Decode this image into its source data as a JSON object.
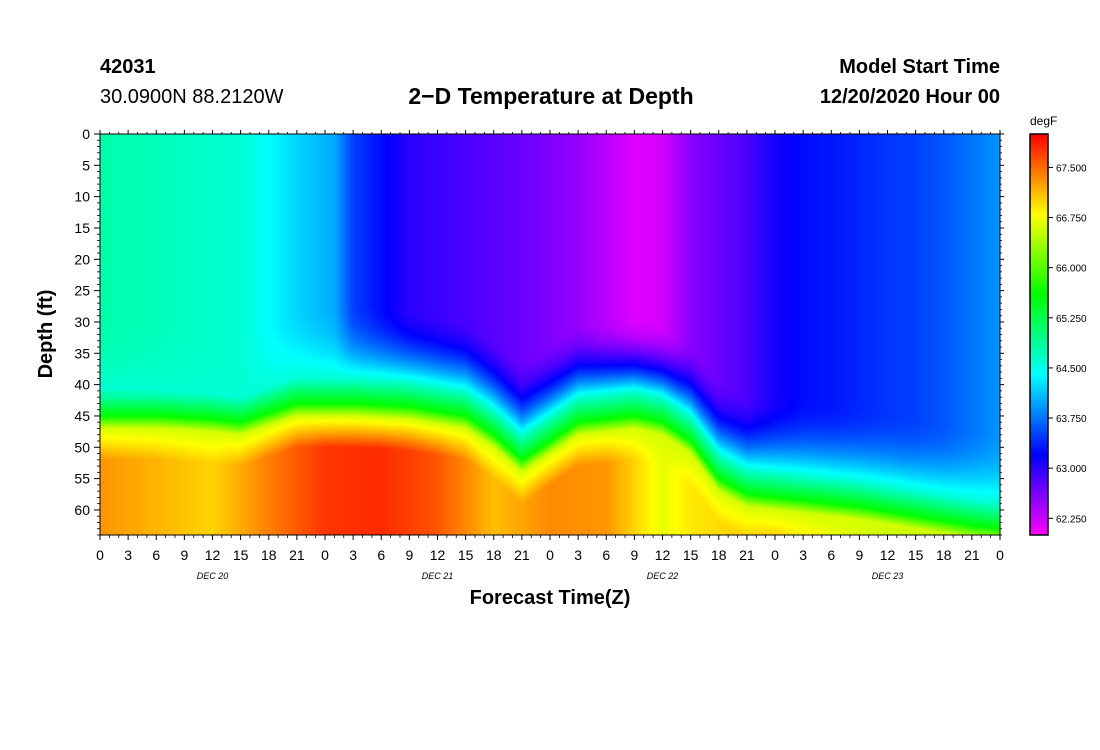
{
  "header": {
    "station_id": "42031",
    "coordinates": "30.0900N 88.2120W",
    "title": "2−D Temperature at Depth",
    "start_label": "Model Start Time",
    "start_value": "12/20/2020 Hour 00"
  },
  "chart_data": {
    "type": "heatmap",
    "title": "2−D Temperature at Depth",
    "xlabel": "Forecast Time(Z)",
    "ylabel": "Depth (ft)",
    "x_hours_range": [
      0,
      96
    ],
    "x_tick_step_hours": 3,
    "x_tick_labels": [
      "0",
      "3",
      "6",
      "9",
      "12",
      "15",
      "18",
      "21",
      "0",
      "3",
      "6",
      "9",
      "12",
      "15",
      "18",
      "21",
      "0",
      "3",
      "6",
      "9",
      "12",
      "15",
      "18",
      "21",
      "0",
      "3",
      "6",
      "9",
      "12",
      "15",
      "18",
      "21",
      "0"
    ],
    "date_labels": [
      {
        "label": "DEC 20",
        "hour": 12
      },
      {
        "label": "DEC 21",
        "hour": 36
      },
      {
        "label": "DEC 22",
        "hour": 60
      },
      {
        "label": "DEC 23",
        "hour": 84
      }
    ],
    "ylim": [
      0,
      64
    ],
    "y_ticks": [
      0,
      5,
      10,
      15,
      20,
      25,
      30,
      35,
      40,
      45,
      50,
      55,
      60
    ],
    "colorbar": {
      "unit": "degF",
      "range": [
        62.0,
        68.0
      ],
      "tick_labels": [
        "67.500",
        "66.750",
        "66.000",
        "65.250",
        "64.500",
        "63.750",
        "63.000",
        "62.250"
      ],
      "tick_values": [
        67.5,
        66.75,
        66.0,
        65.25,
        64.5,
        63.75,
        63.0,
        62.25
      ]
    },
    "thermocline_depth_ft": {
      "hours": [
        0,
        6,
        12,
        15,
        21,
        27,
        33,
        39,
        42,
        45,
        51,
        57,
        60,
        63,
        66,
        69,
        72,
        75,
        78,
        81,
        87,
        93,
        96
      ],
      "depths": [
        45,
        45,
        45.5,
        46,
        43,
        43,
        43.5,
        45,
        48,
        52,
        46,
        45,
        46,
        49,
        55,
        57.5,
        58,
        58.5,
        59,
        59.5,
        61,
        62.5,
        63
      ]
    },
    "upper_temperature_degF": {
      "hours": [
        0,
        15,
        21,
        25,
        27,
        33,
        39,
        45,
        51,
        57,
        60,
        63,
        69,
        72,
        75,
        78,
        84,
        87,
        90,
        96
      ],
      "values": [
        64.8,
        64.6,
        64.2,
        64.0,
        63.5,
        63.0,
        62.85,
        62.7,
        62.5,
        62.15,
        62.2,
        62.55,
        62.85,
        63.1,
        63.25,
        63.3,
        63.45,
        63.5,
        63.6,
        63.9
      ]
    },
    "bottom_temperature_degF": {
      "hours": [
        0,
        12,
        18,
        24,
        30,
        36,
        42,
        48,
        54,
        57,
        60,
        63,
        72,
        84,
        96
      ],
      "values": [
        67.3,
        67.0,
        67.4,
        67.75,
        67.8,
        67.6,
        67.1,
        67.35,
        67.3,
        67.0,
        66.7,
        66.9,
        67.1,
        66.5,
        65.6
      ]
    },
    "lower_layer_thickness_ft": 5
  }
}
